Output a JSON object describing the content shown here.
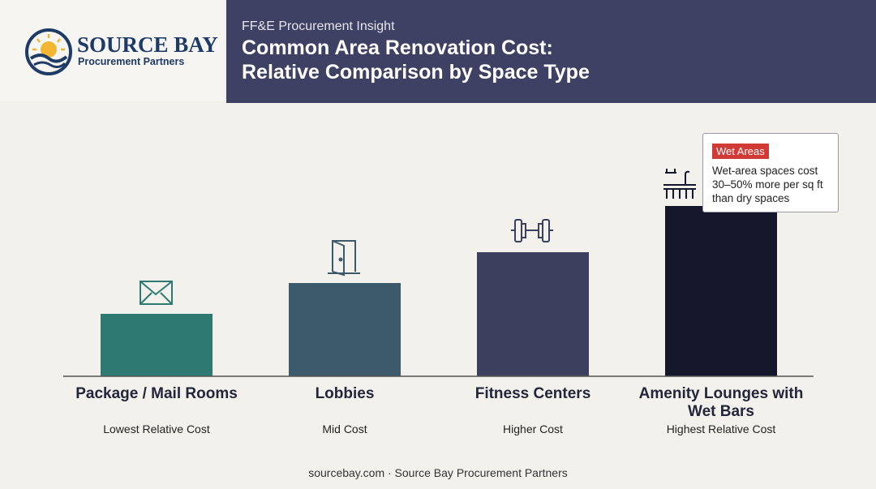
{
  "header": {
    "logo_name": "SOURCE BAY",
    "logo_tagline": "Procurement Partners",
    "kicker": "FF&E Procurement Insight",
    "title_line1": "Common Area Renovation Cost:",
    "title_line2": "Relative Comparison by Space Type"
  },
  "chart_data": {
    "type": "bar",
    "categories": [
      "Package / Mail Rooms",
      "Lobbies",
      "Fitness Centers",
      "Amenity Lounges with Wet Bars"
    ],
    "cost_labels": [
      "Lowest Relative Cost",
      "Mid Cost",
      "Higher Cost",
      "Highest Relative Cost"
    ],
    "values": [
      77,
      115,
      153,
      210
    ],
    "colors": [
      "#2e7a72",
      "#3c5a6c",
      "#3d3f5e",
      "#14162b"
    ],
    "ylim": [
      0,
      220
    ],
    "annotation": {
      "badge": "Wet Areas",
      "text": "Wet-area spaces cost 30–50% more per sq ft than dry spaces"
    }
  },
  "footer": "sourcebay.com · Source Bay Procurement Partners"
}
